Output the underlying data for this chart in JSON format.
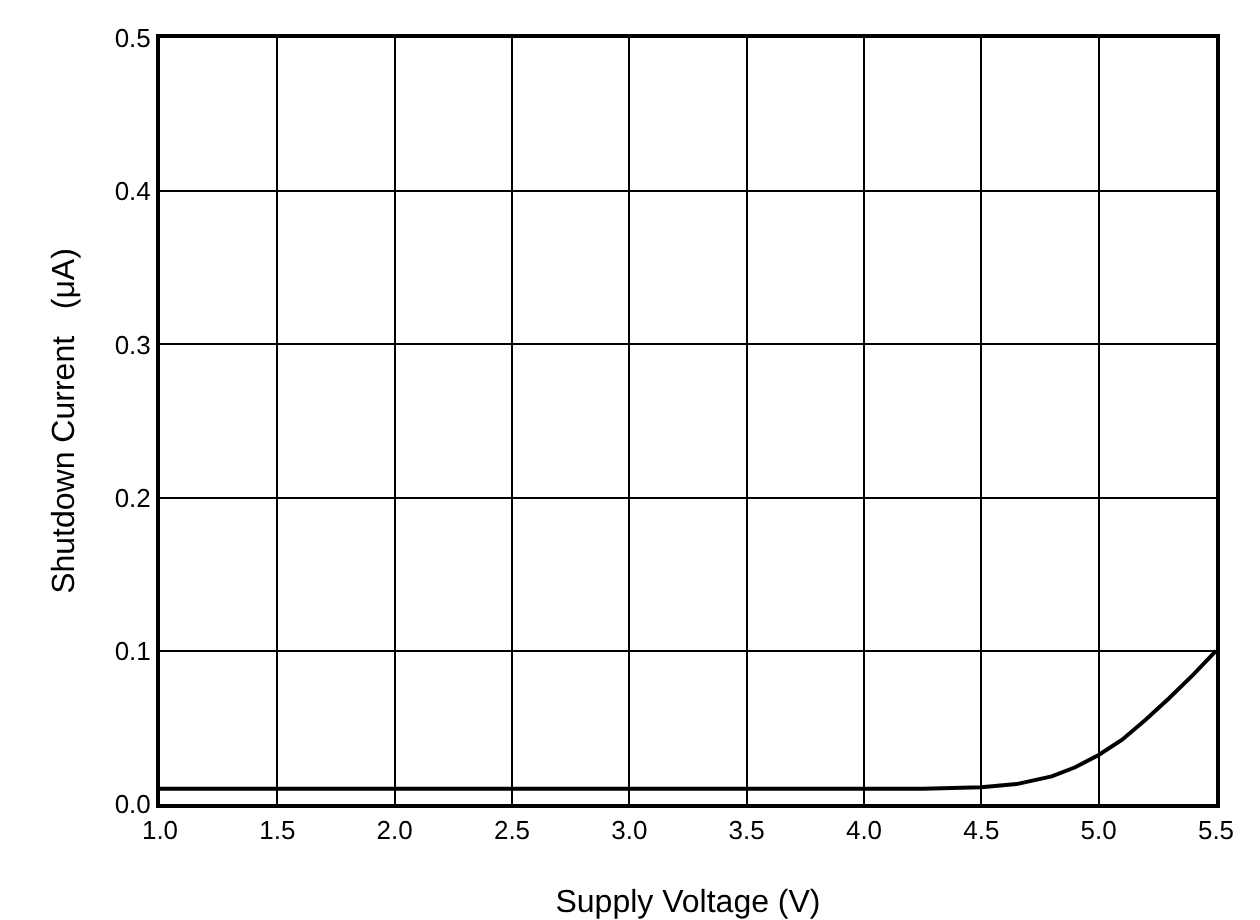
{
  "chart_data": {
    "type": "line",
    "xlabel": "Supply Voltage (V)",
    "ylabel": "Shutdown Current   (μA)",
    "x": [
      1.0,
      1.5,
      2.0,
      2.5,
      3.0,
      3.5,
      4.0,
      4.25,
      4.5,
      4.65,
      4.8,
      4.9,
      5.0,
      5.1,
      5.2,
      5.3,
      5.4,
      5.5
    ],
    "series": [
      {
        "color": "#000000",
        "values": [
          0.01,
          0.01,
          0.01,
          0.01,
          0.01,
          0.01,
          0.01,
          0.01,
          0.011,
          0.013,
          0.018,
          0.024,
          0.032,
          0.042,
          0.055,
          0.069,
          0.084,
          0.1
        ]
      }
    ],
    "xlim": [
      1.0,
      5.5
    ],
    "ylim": [
      0,
      0.5
    ],
    "xticks": [
      {
        "value": 1,
        "label": "1.0"
      },
      1.5,
      {
        "value": 2,
        "label": "2.0"
      },
      2.5,
      {
        "value": 3,
        "label": "3.0"
      },
      3.5,
      {
        "value": 4,
        "label": "4.0"
      },
      4.5,
      {
        "value": 5,
        "label": "5.0"
      },
      5.5
    ],
    "yticks": [
      {
        "value": 0,
        "label": "0.0"
      },
      0.1,
      0.2,
      0.3,
      0.4,
      0.5
    ],
    "grid": true,
    "legend": false,
    "marker": "none",
    "line_style": "solid"
  }
}
